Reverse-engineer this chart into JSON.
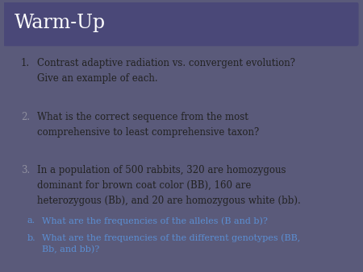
{
  "title": "Warm-Up",
  "title_bg_color": "#4a4878",
  "title_text_color": "#ffffff",
  "outer_bg_color": "#5a5a7a",
  "inner_bg_color": "#f5f5f5",
  "items": [
    {
      "number": "1.",
      "text": "Contrast adaptive radiation vs. convergent evolution?\nGive an example of each.",
      "number_color": "#222222",
      "text_color": "#222222"
    },
    {
      "number": "2.",
      "text": "What is the correct sequence from the most\ncomprehensive to least comprehensive taxon?",
      "number_color": "#9090a0",
      "text_color": "#222222"
    },
    {
      "number": "3.",
      "text": "In a population of 500 rabbits, 320 are homozygous\ndominant for brown coat color (BB), 160 are\nheterozygous (Bb), and 20 are homozygous white (bb).",
      "number_color": "#9090a0",
      "text_color": "#222222"
    }
  ],
  "sub_items": [
    {
      "label": "a.",
      "text": "What are the frequencies of the alleles (B and b)?",
      "color": "#5b8fd4"
    },
    {
      "label": "b.",
      "text": "What are the frequencies of the different genotypes (BB,\nBb, and bb)?",
      "color": "#5b8fd4"
    }
  ],
  "title_fontsize": 17,
  "body_fontsize": 8.5,
  "sub_fontsize": 8.0
}
